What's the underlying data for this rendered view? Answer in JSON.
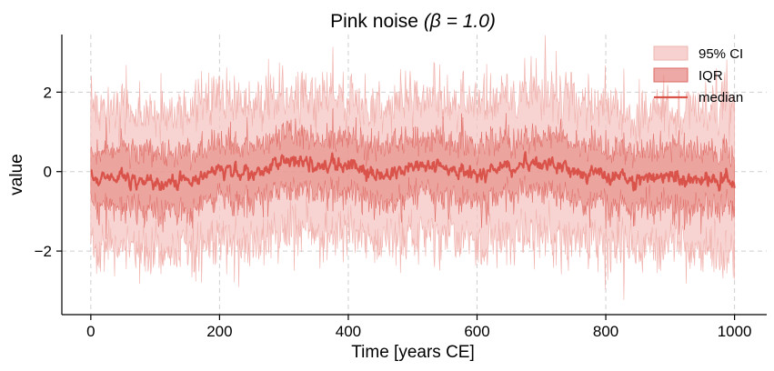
{
  "chart_data": {
    "type": "area",
    "title_text": "Pink noise  ",
    "title_math": "(β = 1.0)",
    "xlabel": "Time [years CE]",
    "ylabel": "value",
    "xlim": [
      -45,
      1050
    ],
    "ylim": [
      -3.6,
      3.45
    ],
    "x_ticks": [
      0,
      200,
      400,
      600,
      800,
      1000
    ],
    "y_ticks": [
      -2,
      0,
      2
    ],
    "x_tick_labels": [
      "0",
      "200",
      "400",
      "600",
      "800",
      "1000"
    ],
    "y_tick_labels": [
      "−2",
      "0",
      "2"
    ],
    "grid": true,
    "legend_position": "top-right",
    "x_range": [
      0,
      1000
    ],
    "median_anchor_points": [
      [
        0,
        -0.2
      ],
      [
        50,
        -0.1
      ],
      [
        100,
        -0.3
      ],
      [
        150,
        -0.2
      ],
      [
        200,
        0.05
      ],
      [
        250,
        -0.1
      ],
      [
        300,
        0.35
      ],
      [
        350,
        0.15
      ],
      [
        400,
        0.2
      ],
      [
        450,
        -0.1
      ],
      [
        500,
        0.2
      ],
      [
        550,
        0.1
      ],
      [
        600,
        -0.1
      ],
      [
        650,
        0.1
      ],
      [
        700,
        0.2
      ],
      [
        750,
        0.0
      ],
      [
        800,
        -0.1
      ],
      [
        850,
        -0.2
      ],
      [
        900,
        -0.1
      ],
      [
        950,
        -0.2
      ],
      [
        1000,
        -0.25
      ]
    ],
    "iqr_halfwidth_approx": 0.65,
    "ci95_halfwidth_approx": 1.8,
    "series": [
      {
        "name": "95% CI",
        "kind": "band",
        "color": "#f4c6c3",
        "opacity": 0.75
      },
      {
        "name": "IQR",
        "kind": "band",
        "color": "#e37b75",
        "opacity": 0.55
      },
      {
        "name": "median",
        "kind": "line",
        "color": "#d9534a"
      }
    ]
  },
  "colors": {
    "ci": "#f4c6c3",
    "iqr": "#e37b75",
    "median": "#d9534a"
  }
}
